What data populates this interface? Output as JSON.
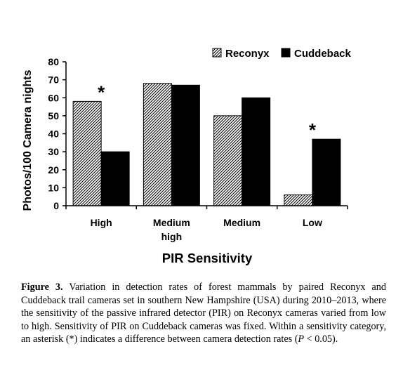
{
  "chart_data": {
    "type": "bar",
    "categories": [
      "High",
      "Medium\nhigh",
      "Medium",
      "Low"
    ],
    "series": [
      {
        "name": "Reconyx",
        "values": [
          58,
          68,
          50,
          6
        ],
        "pattern": "diagonal-hatch"
      },
      {
        "name": "Cuddeback",
        "values": [
          30,
          67,
          60,
          37
        ],
        "color": "#000000"
      }
    ],
    "significant_marker": "*",
    "significant_categories": [
      "High",
      "Low"
    ],
    "xlabel": "PIR Sensitivity",
    "ylabel": "Photos/100 Camera nights",
    "ylim": [
      0,
      80
    ],
    "yticks": [
      0,
      10,
      20,
      30,
      40,
      50,
      60,
      70,
      80
    ],
    "grid": false,
    "legend_position": "top-right"
  },
  "caption": {
    "label": "Figure 3.",
    "text_1": " Variation in detection rates of forest mammals by paired Reconyx and Cuddeback trail cameras set in southern New Hampshire (USA) during 2010–2013, where the sensitivity of the passive infrared detector (PIR) on Reconyx cameras varied from low to high. Sensitivity of PIR on Cuddeback cameras was fixed. Within a sensitivity category, an asterisk (*) indicates a difference between camera detection rates (",
    "p_symbol": "P",
    "text_2": " < 0.05)."
  }
}
